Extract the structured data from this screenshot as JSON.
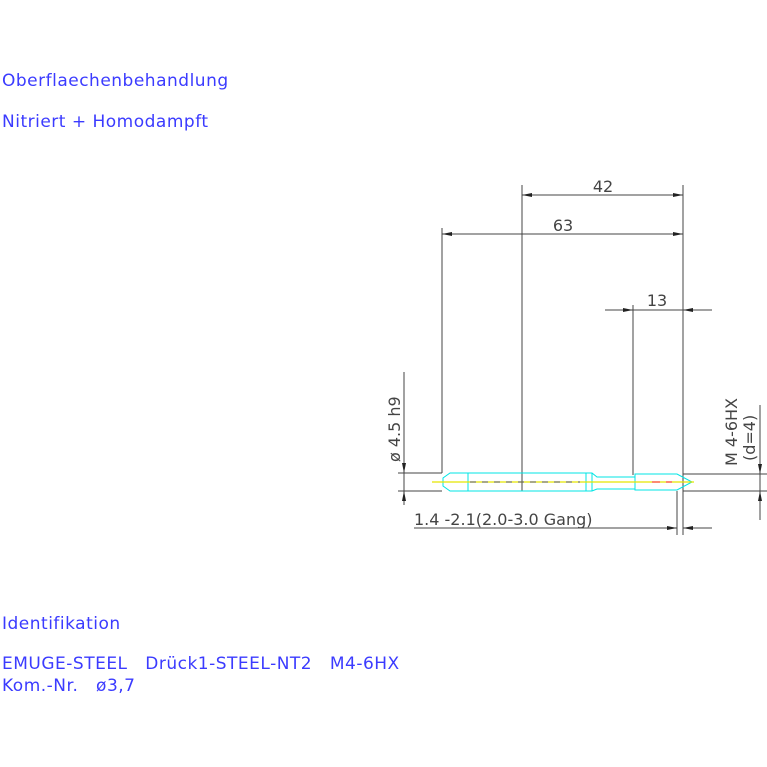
{
  "notes": {
    "treatment_heading": "Oberflaechenbehandlung",
    "treatment_value": "Nitriert + Homodampft",
    "identification_heading": "Identifikation",
    "identification_line1": "EMUGE-STEEL   Drück1-STEEL-NT2   M4-6HX",
    "identification_line2": "Kom.-Nr.   ø3,7"
  },
  "dimensions": {
    "dim_42": "42",
    "dim_63": "63",
    "dim_13": "13",
    "shank_diameter": "ø 4.5 h9",
    "thread_spec": "M 4-6HX",
    "thread_d": "(d=4)",
    "chamfer": "1.4 -2.1(2.0-3.0 Gang)"
  },
  "colors": {
    "text": "#3b3bff",
    "dimension": "#444444",
    "tool_outline": "#00e5e5",
    "center_line": "#e5e500",
    "hidden": "#ff4040"
  }
}
